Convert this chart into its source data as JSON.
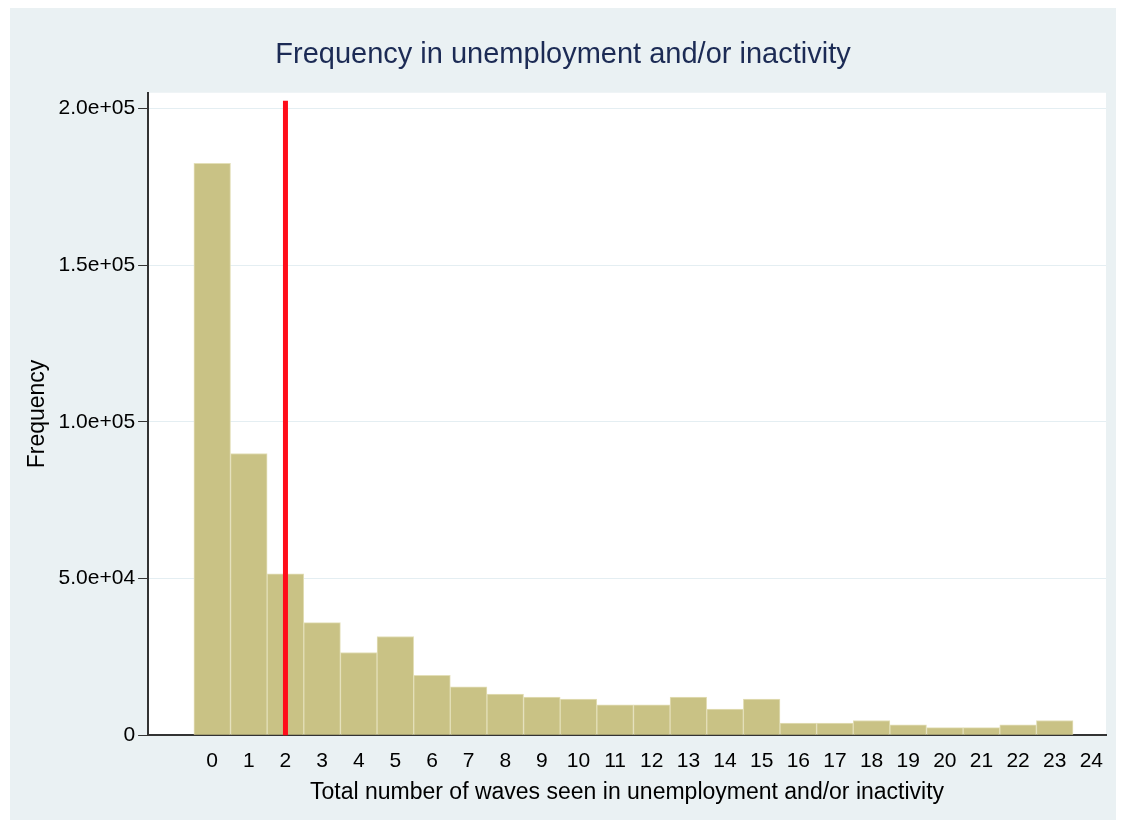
{
  "chart_data": {
    "type": "histogram",
    "title": "Frequency in unemployment and/or inactivity",
    "xlabel": "Total number of waves seen in unemployment and/or inactivity",
    "ylabel": "Frequency",
    "bins": [
      -0.5,
      0.5,
      1.5,
      2.5,
      3.5,
      4.5,
      5.5,
      6.5,
      7.5,
      8.5,
      9.5,
      10.5,
      11.5,
      12.5,
      13.5,
      14.5,
      15.5,
      16.5,
      17.5,
      18.5,
      19.5,
      20.5,
      21.5,
      22.5,
      23.5
    ],
    "values": [
      182500,
      89900,
      51500,
      35900,
      26400,
      31500,
      19100,
      15400,
      13100,
      12200,
      11500,
      9700,
      9700,
      12200,
      8300,
      11500,
      3900,
      3900,
      4700,
      3300,
      2400,
      2400,
      3300,
      4700
    ],
    "color": "#c9c285",
    "xlim": [
      -1.75,
      24.4
    ],
    "xticks": [
      0,
      1,
      2,
      3,
      4,
      5,
      6,
      7,
      8,
      9,
      10,
      11,
      12,
      13,
      14,
      15,
      16,
      17,
      18,
      19,
      20,
      21,
      22,
      23,
      24
    ],
    "ylim": [
      0,
      205000
    ],
    "yticks": [
      {
        "value": 0,
        "label": "0"
      },
      {
        "value": 50000,
        "label": "5.0e+04"
      },
      {
        "value": 100000,
        "label": "1.0e+05"
      },
      {
        "value": 150000,
        "label": "1.5e+05"
      },
      {
        "value": 200000,
        "label": "2.0e+05"
      }
    ],
    "ref_lines": [
      {
        "axis": "x",
        "value": 2,
        "color": "#ff0d1a"
      }
    ],
    "grid": "y",
    "legend": false
  }
}
